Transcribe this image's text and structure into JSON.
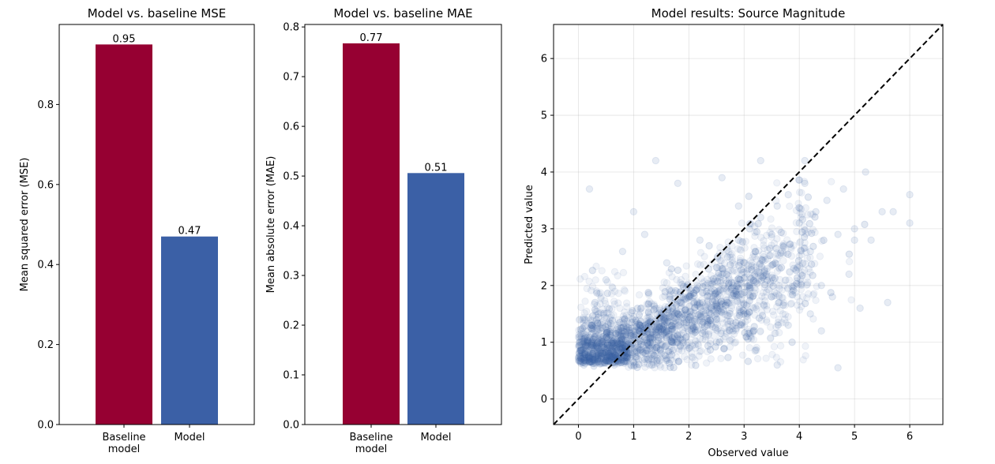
{
  "chart_data": [
    {
      "type": "bar",
      "title": "Model vs. baseline MSE",
      "ylabel": "Mean squared error (MSE)",
      "categories": [
        "Baseline model",
        "Model"
      ],
      "category_lines": [
        [
          "Baseline",
          "model"
        ],
        [
          "Model"
        ]
      ],
      "values": [
        0.95,
        0.47
      ],
      "data_labels": [
        "0.95",
        "0.47"
      ],
      "colors": [
        "#960032",
        "#3b60a6"
      ],
      "ylim": [
        0,
        1.0
      ],
      "yticks": [
        0.0,
        0.2,
        0.4,
        0.6,
        0.8
      ],
      "ytick_labels": [
        "0.0",
        "0.2",
        "0.4",
        "0.6",
        "0.8"
      ]
    },
    {
      "type": "bar",
      "title": "Model vs. baseline MAE",
      "ylabel": "Mean absolute error (MAE)",
      "categories": [
        "Baseline model",
        "Model"
      ],
      "category_lines": [
        [
          "Baseline",
          "model"
        ],
        [
          "Model"
        ]
      ],
      "values": [
        0.767,
        0.506
      ],
      "data_labels": [
        "0.77",
        "0.51"
      ],
      "colors": [
        "#960032",
        "#3b60a6"
      ],
      "ylim": [
        0,
        0.805
      ],
      "yticks": [
        0.0,
        0.1,
        0.2,
        0.3,
        0.4,
        0.5,
        0.6,
        0.7,
        0.8
      ],
      "ytick_labels": [
        "0.0",
        "0.1",
        "0.2",
        "0.3",
        "0.4",
        "0.5",
        "0.6",
        "0.7",
        "0.8"
      ]
    },
    {
      "type": "scatter",
      "title": "Model results: Source Magnitude",
      "xlabel": "Observed value",
      "ylabel": "Predicted value",
      "xlim": [
        -0.45,
        6.6
      ],
      "ylim": [
        -0.45,
        6.6
      ],
      "xticks": [
        0,
        1,
        2,
        3,
        4,
        5,
        6
      ],
      "yticks": [
        0,
        1,
        2,
        3,
        4,
        5,
        6
      ],
      "grid": true,
      "point_color": "#3b60a6",
      "point_alpha": 0.08,
      "reference_line": "y = x, black dashed",
      "points": [
        [
          0.12,
          0.72
        ],
        [
          0.2,
          0.65
        ],
        [
          0.3,
          0.7
        ],
        [
          0.05,
          0.85
        ],
        [
          0.4,
          0.62
        ],
        [
          0.5,
          0.68
        ],
        [
          0.6,
          0.7
        ],
        [
          0.15,
          1.0
        ],
        [
          0.25,
          1.3
        ],
        [
          0.08,
          1.4
        ],
        [
          0.35,
          0.9
        ],
        [
          0.45,
          1.1
        ],
        [
          0.55,
          0.8
        ],
        [
          0.7,
          0.75
        ],
        [
          0.8,
          0.9
        ],
        [
          0.9,
          1.0
        ],
        [
          1.0,
          1.1
        ],
        [
          1.1,
          1.2
        ],
        [
          1.2,
          1.3
        ],
        [
          1.3,
          1.0
        ],
        [
          1.4,
          1.4
        ],
        [
          1.5,
          1.5
        ],
        [
          1.6,
          1.2
        ],
        [
          1.7,
          1.6
        ],
        [
          1.8,
          1.5
        ],
        [
          1.9,
          1.8
        ],
        [
          2.0,
          1.4
        ],
        [
          2.1,
          1.7
        ],
        [
          2.2,
          1.5
        ],
        [
          2.3,
          2.0
        ],
        [
          2.4,
          1.6
        ],
        [
          2.5,
          1.4
        ],
        [
          2.6,
          2.2
        ],
        [
          2.7,
          2.5
        ],
        [
          2.8,
          2.0
        ],
        [
          2.9,
          2.8
        ],
        [
          3.0,
          2.4
        ],
        [
          3.1,
          3.0
        ],
        [
          3.2,
          2.6
        ],
        [
          3.3,
          3.2
        ],
        [
          3.4,
          2.2
        ],
        [
          3.5,
          2.9
        ],
        [
          3.6,
          3.4
        ],
        [
          3.7,
          2.7
        ],
        [
          3.8,
          3.6
        ],
        [
          3.9,
          2.3
        ],
        [
          4.0,
          3.1
        ],
        [
          4.1,
          3.8
        ],
        [
          4.2,
          2.6
        ],
        [
          4.3,
          3.3
        ],
        [
          4.4,
          2.0
        ],
        [
          4.5,
          3.5
        ],
        [
          4.6,
          1.8
        ],
        [
          4.7,
          2.9
        ],
        [
          4.8,
          3.7
        ],
        [
          4.9,
          2.2
        ],
        [
          5.0,
          3.0
        ],
        [
          5.1,
          1.6
        ],
        [
          5.2,
          4.0
        ],
        [
          5.3,
          2.8
        ],
        [
          5.5,
          3.3
        ],
        [
          5.6,
          1.7
        ],
        [
          5.7,
          3.3
        ],
        [
          6.0,
          3.6
        ],
        [
          6.0,
          3.1
        ],
        [
          5.0,
          2.8
        ],
        [
          4.7,
          0.55
        ],
        [
          3.6,
          0.6
        ],
        [
          3.2,
          0.85
        ],
        [
          1.8,
          3.8
        ],
        [
          1.4,
          4.2
        ],
        [
          0.2,
          3.7
        ],
        [
          1.0,
          3.3
        ],
        [
          2.6,
          3.9
        ],
        [
          3.3,
          4.2
        ],
        [
          4.1,
          4.2
        ],
        [
          0.8,
          2.6
        ],
        [
          1.2,
          2.9
        ],
        [
          0.5,
          2.1
        ],
        [
          0.3,
          1.7
        ],
        [
          1.6,
          2.4
        ],
        [
          2.2,
          2.8
        ],
        [
          2.0,
          0.9
        ],
        [
          2.5,
          1.0
        ],
        [
          2.8,
          1.2
        ],
        [
          3.0,
          1.5
        ],
        [
          3.5,
          1.8
        ],
        [
          3.8,
          1.3
        ],
        [
          4.2,
          1.5
        ],
        [
          4.4,
          1.2
        ],
        [
          1.0,
          0.65
        ],
        [
          1.2,
          0.7
        ],
        [
          1.5,
          0.8
        ],
        [
          0.95,
          0.6
        ],
        [
          0.65,
          0.6
        ],
        [
          0.1,
          0.6
        ],
        [
          0.28,
          0.58
        ],
        [
          1.8,
          1.0
        ],
        [
          2.4,
          1.9
        ],
        [
          2.9,
          3.4
        ]
      ]
    }
  ]
}
